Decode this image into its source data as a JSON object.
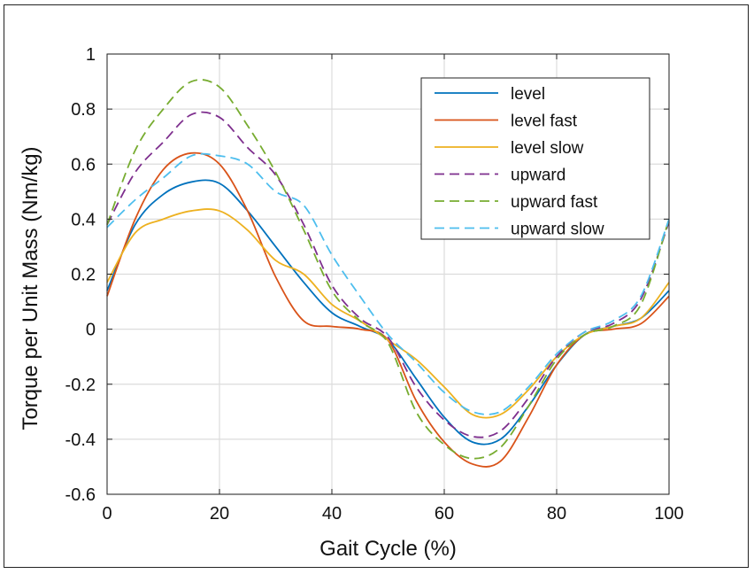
{
  "chart_data": {
    "type": "line",
    "xlabel": "Gait Cycle (%)",
    "ylabel": "Torque per Unit Mass (Nm/kg)",
    "xlim": [
      0,
      100
    ],
    "ylim": [
      -0.6,
      1
    ],
    "xticks": [
      0,
      20,
      40,
      60,
      80,
      100
    ],
    "yticks": [
      -0.6,
      -0.4,
      -0.2,
      0,
      0.2,
      0.4,
      0.6,
      0.8,
      1
    ],
    "ytick_labels": [
      "-0.6",
      "-0.4",
      "-0.2",
      "0",
      "0.2",
      "0.4",
      "0.6",
      "0.8",
      "1"
    ],
    "grid": true,
    "legend_position": "top-right",
    "x": [
      0,
      5,
      10,
      15,
      20,
      25,
      30,
      35,
      40,
      45,
      50,
      55,
      60,
      65,
      70,
      75,
      80,
      85,
      90,
      95,
      100
    ],
    "series": [
      {
        "name": "level",
        "color": "#0072BD",
        "dash": "solid",
        "values": [
          0.14,
          0.38,
          0.49,
          0.535,
          0.53,
          0.43,
          0.3,
          0.17,
          0.06,
          0.01,
          -0.04,
          -0.18,
          -0.32,
          -0.41,
          -0.4,
          -0.28,
          -0.13,
          -0.02,
          0.01,
          0.04,
          0.14
        ]
      },
      {
        "name": "level fast",
        "color": "#D95319",
        "dash": "solid",
        "values": [
          0.12,
          0.4,
          0.58,
          0.64,
          0.6,
          0.43,
          0.19,
          0.03,
          0.01,
          0.0,
          -0.04,
          -0.26,
          -0.41,
          -0.49,
          -0.48,
          -0.32,
          -0.13,
          -0.02,
          0.0,
          0.02,
          0.12
        ]
      },
      {
        "name": "level slow",
        "color": "#EDB120",
        "dash": "solid",
        "values": [
          0.17,
          0.35,
          0.4,
          0.43,
          0.43,
          0.36,
          0.25,
          0.2,
          0.09,
          0.03,
          -0.04,
          -0.11,
          -0.21,
          -0.31,
          -0.31,
          -0.22,
          -0.1,
          -0.02,
          0.01,
          0.04,
          0.17
        ]
      },
      {
        "name": "upward",
        "color": "#7E2F8E",
        "dash": "dashed",
        "values": [
          0.38,
          0.57,
          0.68,
          0.78,
          0.77,
          0.66,
          0.56,
          0.38,
          0.16,
          0.04,
          -0.03,
          -0.21,
          -0.33,
          -0.39,
          -0.37,
          -0.25,
          -0.1,
          -0.01,
          0.02,
          0.11,
          0.39
        ]
      },
      {
        "name": "upward fast",
        "color": "#77AC30",
        "dash": "dashed",
        "values": [
          0.38,
          0.65,
          0.8,
          0.9,
          0.88,
          0.74,
          0.57,
          0.36,
          0.14,
          0.03,
          -0.05,
          -0.3,
          -0.42,
          -0.47,
          -0.43,
          -0.28,
          -0.11,
          -0.02,
          0.01,
          0.09,
          0.4
        ]
      },
      {
        "name": "upward slow",
        "color": "#4DBEEE",
        "dash": "dashed",
        "values": [
          0.37,
          0.47,
          0.55,
          0.63,
          0.63,
          0.6,
          0.5,
          0.45,
          0.27,
          0.12,
          -0.02,
          -0.12,
          -0.23,
          -0.3,
          -0.3,
          -0.21,
          -0.09,
          -0.01,
          0.03,
          0.12,
          0.4
        ]
      }
    ]
  }
}
